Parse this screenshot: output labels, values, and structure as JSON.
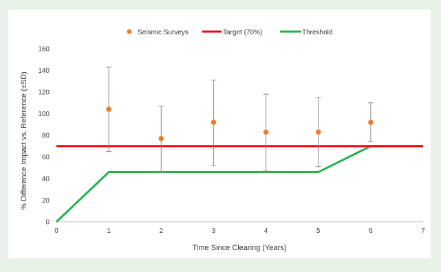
{
  "colors": {
    "background": "#e8f1e8",
    "plot_background": "#ffffff",
    "seismic": "#ed7d31",
    "target": "#ff0000",
    "threshold": "#22b14c",
    "error_bar": "#8c8c8c",
    "axis": "#bfbfbf"
  },
  "chart_data": {
    "type": "scatter",
    "title": "",
    "xlabel": "Time Since Clearing (Years)",
    "ylabel": "% Difference Impact vs. Reference (±SD)",
    "xlim": [
      0,
      7
    ],
    "ylim": [
      0,
      160
    ],
    "xticks": [
      0,
      1,
      2,
      3,
      4,
      5,
      6,
      7
    ],
    "yticks": [
      0,
      20,
      40,
      60,
      80,
      100,
      120,
      140,
      160
    ],
    "grid": false,
    "legend_position": "top",
    "series": [
      {
        "name": "Seismic Surveys",
        "kind": "points_with_error_bars",
        "color": "#ed7d31",
        "x": [
          1,
          2,
          3,
          4,
          5,
          6
        ],
        "y": [
          104,
          77,
          92,
          83,
          83,
          92
        ],
        "y_upper": [
          143,
          107,
          131,
          118,
          115,
          110
        ],
        "y_lower": [
          65,
          46,
          52,
          47,
          51,
          74
        ]
      },
      {
        "name": "Target (70%)",
        "kind": "line",
        "color": "#ff0000",
        "x": [
          0,
          7
        ],
        "y": [
          70,
          70
        ]
      },
      {
        "name": "Threshold",
        "kind": "line",
        "color": "#22b14c",
        "x": [
          0,
          1,
          5,
          6,
          7
        ],
        "y": [
          0,
          46,
          46,
          70,
          70
        ]
      }
    ]
  }
}
